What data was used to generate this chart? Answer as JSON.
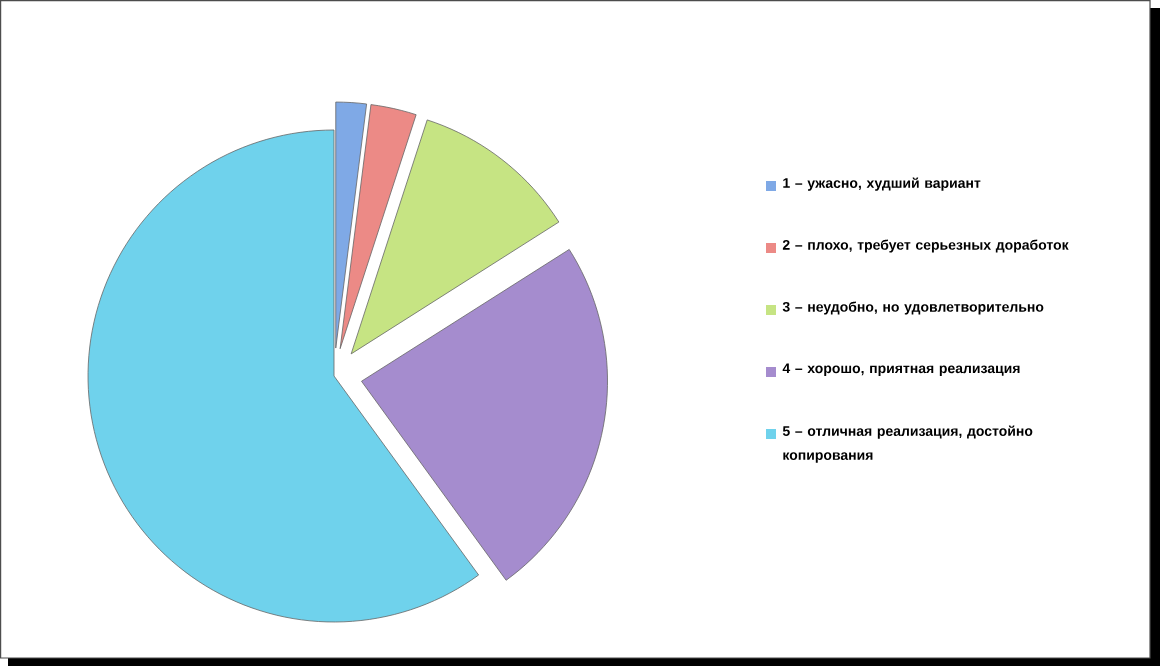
{
  "chart_data": {
    "type": "pie",
    "categories": [
      "1 – ужасно, худший вариант",
      "2 – плохо, требует серьезных доработок",
      "3 – неудобно, но удовлетворительно",
      "4 – хорошо, приятная реализация",
      "5 – отличная реализация, достойно копирования"
    ],
    "values": [
      2,
      3,
      11,
      24,
      60
    ],
    "colors": [
      "#7fa9e6",
      "#ec8a86",
      "#c6e483",
      "#a58cce",
      "#6fd2ec"
    ],
    "legend": "right"
  }
}
